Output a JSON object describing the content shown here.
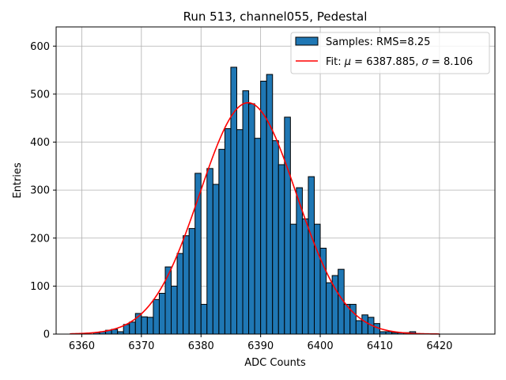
{
  "chart_data": {
    "type": "bar",
    "title": "Run 513, channel055, Pedestal",
    "xlabel": "ADC Counts",
    "ylabel": "Entries",
    "xlim": [
      6355.7,
      6429.3
    ],
    "ylim": [
      0,
      640
    ],
    "x_ticks": [
      6360,
      6370,
      6380,
      6390,
      6400,
      6410,
      6420
    ],
    "y_ticks": [
      0,
      100,
      200,
      300,
      400,
      500,
      600
    ],
    "grid": true,
    "legend_position": "top-right",
    "bar_color": "#1f77b4",
    "fit_color": "#ff0000",
    "histogram": {
      "name": "Samples: RMS=8.25",
      "bin_width": 1,
      "bin_starts": [
        6362,
        6363,
        6364,
        6365,
        6366,
        6367,
        6368,
        6369,
        6370,
        6371,
        6372,
        6373,
        6374,
        6375,
        6376,
        6377,
        6378,
        6379,
        6380,
        6381,
        6382,
        6383,
        6384,
        6385,
        6386,
        6387,
        6388,
        6389,
        6390,
        6391,
        6392,
        6393,
        6394,
        6395,
        6396,
        6397,
        6398,
        6399,
        6400,
        6401,
        6402,
        6403,
        6404,
        6405,
        6406,
        6407,
        6408,
        6409,
        6410,
        6411,
        6412,
        6413,
        6414,
        6415
      ],
      "counts": [
        3,
        5,
        8,
        10,
        5,
        20,
        25,
        43,
        36,
        35,
        72,
        85,
        140,
        100,
        168,
        205,
        220,
        335,
        62,
        345,
        312,
        385,
        428,
        556,
        426,
        507,
        480,
        408,
        527,
        541,
        403,
        353,
        452,
        229,
        305,
        240,
        328,
        229,
        179,
        107,
        122,
        135,
        62,
        62,
        28,
        40,
        35,
        22,
        5,
        5,
        3,
        3,
        3,
        5
      ]
    },
    "fit": {
      "name_prefix": "Fit: ",
      "mu_symbol": "μ",
      "mu_value": "6387.885",
      "sigma_symbol": "σ",
      "sigma_value": "8.106",
      "mu": 6387.885,
      "sigma": 8.106,
      "amplitude": 482,
      "x_range": [
        6358,
        6420
      ]
    }
  }
}
